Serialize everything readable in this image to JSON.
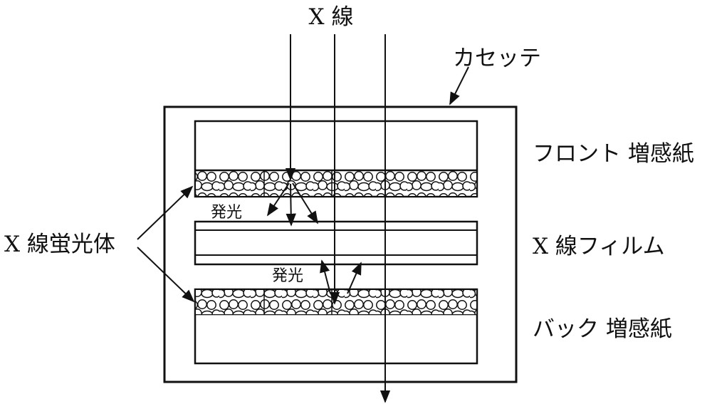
{
  "labels": {
    "xray": "X 線",
    "cassette": "カセッテ",
    "front_screen": "フロント 増感紙",
    "xray_film": "X 線フィルム",
    "back_screen": "バック 増感紙",
    "phosphor": "X 線蛍光体",
    "emission_top": "発光",
    "emission_bottom": "発光"
  }
}
